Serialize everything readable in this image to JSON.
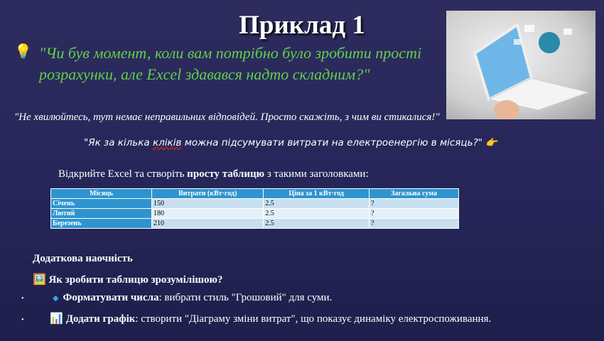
{
  "title": "Приклад 1",
  "quote": "\"Чи був момент, коли вам потрібно було зробити прості розрахунки, але Excel здавався надто складним?\"",
  "reassure": "\"Не хвилюйтесь, тут немає неправильних відповідей. Просто скажіть, з чим ви стикалися!\"",
  "question": {
    "before": "\"Як за кілька ",
    "underlined": "кліків",
    "after": " можна підсумувати витрати на електроенергію в місяць?\" "
  },
  "instruction": {
    "before": "Відкрийте Excel та створіть ",
    "bold": "просту таблицю",
    "after": " з такими заголовками:"
  },
  "table": {
    "headers": [
      "Місяць",
      "Витрати (кВт·год)",
      "Ціна за 1 кВт·год",
      "Загальна сума"
    ],
    "rows": [
      [
        "Січень",
        "150",
        "2.5",
        "?"
      ],
      [
        "Лютий",
        "180",
        "2.5",
        "?"
      ],
      [
        "Березень",
        "210",
        "2.5",
        "?"
      ]
    ]
  },
  "extra_heading": "Додаткова наочність",
  "how_heading": "Як зробити таблицю зрозумілішою?",
  "bullets": [
    {
      "bold": "Форматувати числа",
      "text": ": вибрати стиль \"Грошовий\" для суми."
    },
    {
      "bold": "Додати графік",
      "text": ": створити \"Діаграму зміни витрат\", що показує динаміку електроспоживання."
    }
  ],
  "colors": {
    "quote": "#5fd14a",
    "table_header": "#2e94d0",
    "background": "#2a2a5a"
  }
}
